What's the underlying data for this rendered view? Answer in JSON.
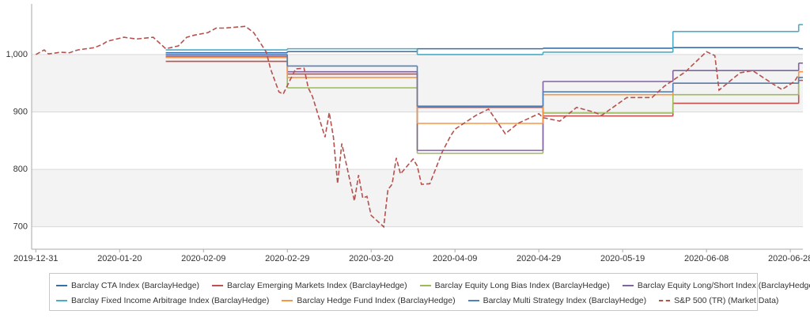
{
  "chart_data": {
    "type": "line",
    "grid": "alternating-bands",
    "xlim": [
      "2019-12-30",
      "2020-07-01"
    ],
    "xticks": [
      "2019-12-31",
      "2020-01-20",
      "2020-02-09",
      "2020-02-29",
      "2020-03-20",
      "2020-04-09",
      "2020-04-29",
      "2020-05-19",
      "2020-06-08",
      "2020-06-28"
    ],
    "ylim": [
      661,
      1088
    ],
    "yticks": [
      700,
      800,
      900,
      {
        "value": 1000,
        "label": "1,000"
      }
    ],
    "series": [
      {
        "name": "Barclay CTA Index  (BarclayHedge)",
        "color": "#3b6ea8",
        "step": true,
        "x": [
          "2020-01-31",
          "2020-02-29",
          "2020-03-31",
          "2020-04-30",
          "2020-05-31",
          "2020-06-30"
        ],
        "values": [
          1003,
          1005,
          1010,
          1011,
          1012,
          1010
        ]
      },
      {
        "name": "Barclay Emerging Markets Index  (BarclayHedge)",
        "color": "#c0504d",
        "step": true,
        "x": [
          "2020-01-31",
          "2020-02-29",
          "2020-03-31",
          "2020-04-30",
          "2020-05-31",
          "2020-06-30"
        ],
        "values": [
          988,
          966,
          908,
          893,
          915,
          955
        ]
      },
      {
        "name": "Barclay Equity Long Bias Index  (BarclayHedge)",
        "color": "#9bbb59",
        "step": true,
        "x": [
          "2020-01-31",
          "2020-02-29",
          "2020-03-31",
          "2020-04-30",
          "2020-05-31",
          "2020-06-30"
        ],
        "values": [
          995,
          942,
          828,
          898,
          930,
          960
        ]
      },
      {
        "name": "Barclay Equity Long/Short Index  (BarclayHedge)",
        "color": "#8064a2",
        "step": true,
        "x": [
          "2020-01-31",
          "2020-02-29",
          "2020-03-31",
          "2020-04-30",
          "2020-05-31",
          "2020-06-30"
        ],
        "values": [
          997,
          970,
          833,
          953,
          972,
          985
        ]
      },
      {
        "name": "Barclay Fixed Income Arbitrage Index  (BarclayHedge)",
        "color": "#4bacc6",
        "step": true,
        "x": [
          "2020-01-31",
          "2020-02-29",
          "2020-03-31",
          "2020-04-30",
          "2020-05-31",
          "2020-06-30"
        ],
        "values": [
          1008,
          1010,
          1000,
          1004,
          1040,
          1052
        ]
      },
      {
        "name": "Barclay Hedge Fund Index  (BarclayHedge)",
        "color": "#f79646",
        "step": true,
        "x": [
          "2020-01-31",
          "2020-02-29",
          "2020-03-31",
          "2020-04-30",
          "2020-05-31",
          "2020-06-30"
        ],
        "values": [
          995,
          960,
          880,
          930,
          950,
          970
        ]
      },
      {
        "name": "Barclay Multi Strategy Index  (BarclayHedge)",
        "color": "#4f81bd",
        "step": true,
        "x": [
          "2020-01-31",
          "2020-02-29",
          "2020-03-31",
          "2020-04-30",
          "2020-05-31",
          "2020-06-30"
        ],
        "values": [
          1000,
          980,
          910,
          935,
          950,
          960
        ]
      },
      {
        "name": "S&P 500 (TR) (Market Data)",
        "color": "#b5524e",
        "dashed": true,
        "x": [
          "2019-12-31",
          "2020-01-02",
          "2020-01-03",
          "2020-01-06",
          "2020-01-08",
          "2020-01-10",
          "2020-01-14",
          "2020-01-16",
          "2020-01-17",
          "2020-01-21",
          "2020-01-24",
          "2020-01-28",
          "2020-01-31",
          "2020-02-03",
          "2020-02-05",
          "2020-02-07",
          "2020-02-10",
          "2020-02-12",
          "2020-02-14",
          "2020-02-19",
          "2020-02-21",
          "2020-02-24",
          "2020-02-25",
          "2020-02-27",
          "2020-02-28",
          "2020-03-02",
          "2020-03-04",
          "2020-03-05",
          "2020-03-06",
          "2020-03-09",
          "2020-03-10",
          "2020-03-11",
          "2020-03-12",
          "2020-03-13",
          "2020-03-16",
          "2020-03-17",
          "2020-03-18",
          "2020-03-19",
          "2020-03-20",
          "2020-03-23",
          "2020-03-24",
          "2020-03-25",
          "2020-03-26",
          "2020-03-27",
          "2020-03-30",
          "2020-03-31",
          "2020-04-01",
          "2020-04-03",
          "2020-04-06",
          "2020-04-08",
          "2020-04-09",
          "2020-04-14",
          "2020-04-17",
          "2020-04-21",
          "2020-04-24",
          "2020-04-29",
          "2020-04-30",
          "2020-05-04",
          "2020-05-08",
          "2020-05-12",
          "2020-05-14",
          "2020-05-20",
          "2020-05-26",
          "2020-05-29",
          "2020-06-03",
          "2020-06-08",
          "2020-06-10",
          "2020-06-11",
          "2020-06-16",
          "2020-06-19",
          "2020-06-24",
          "2020-06-26",
          "2020-06-29",
          "2020-06-30"
        ],
        "values": [
          1000,
          1008,
          1001,
          1004,
          1003,
          1008,
          1012,
          1018,
          1023,
          1030,
          1027,
          1030,
          1010,
          1015,
          1030,
          1034,
          1038,
          1046,
          1046,
          1049,
          1038,
          1004,
          975,
          935,
          931,
          975,
          976,
          942,
          927,
          856,
          899,
          856,
          775,
          845,
          745,
          790,
          750,
          753,
          720,
          700,
          765,
          774,
          820,
          792,
          818,
          806,
          774,
          775,
          831,
          859,
          870,
          894,
          905,
          862,
          880,
          897,
          890,
          884,
          908,
          900,
          894,
          925,
          925,
          945,
          970,
          1005,
          998,
          938,
          968,
          972,
          948,
          939,
          953,
          965
        ]
      }
    ]
  }
}
